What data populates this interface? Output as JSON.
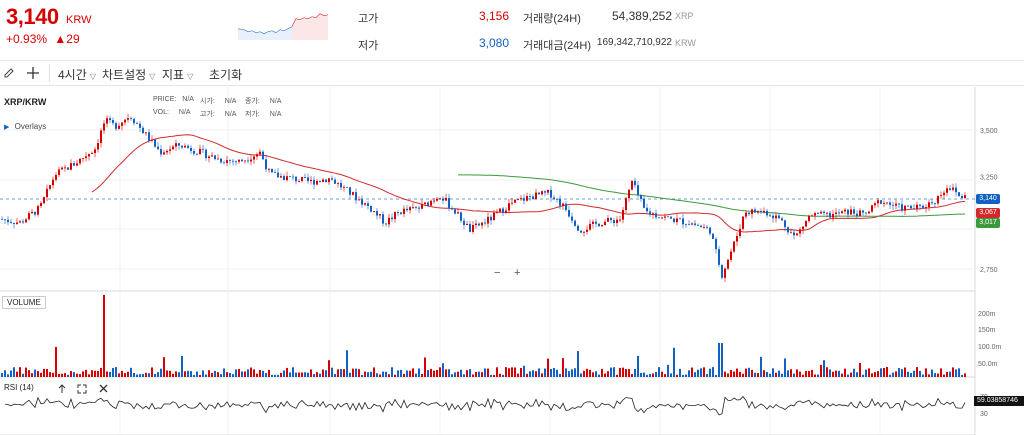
{
  "ticker": {
    "price": "3,140",
    "unit": "KRW",
    "change_pct": "+0.93%",
    "change_arrow": "▲",
    "change_abs": "29",
    "high_label": "고가",
    "high_value": "3,156",
    "low_label": "저가",
    "low_value": "3,080",
    "volume_label": "거래량(24H)",
    "volume_value": "54,389,252",
    "volume_unit": "XRP",
    "amount_label": "거래대금(24H)",
    "amount_value": "169,342,710,922",
    "amount_unit": "KRW"
  },
  "toolbar": {
    "interval": "4시간",
    "chart_settings": "차트설정",
    "indicators": "지표",
    "reset": "초기화"
  },
  "chart": {
    "symbol": "XRP/KRW",
    "overlays": "Overlays",
    "info": {
      "price_label": "PRICE:",
      "price_value": "N/A",
      "open_label": "시가:",
      "open_value": "N/A",
      "close_label": "종가:",
      "close_value": "N/A",
      "vol_label": "VOL:",
      "vol_value": "N/A",
      "high_label": "고가:",
      "high_value": "N/A",
      "low_label": "저가:",
      "low_value": "N/A"
    },
    "price_ticks": [
      "3,500",
      "3,250",
      "2,750"
    ],
    "price_tags": {
      "current": "3,140",
      "ma_red": "3,067",
      "ma_green": "3,017"
    },
    "volume_label": "VOLUME",
    "volume_ticks": [
      "200m",
      "150m",
      "100.0m",
      "50.0m"
    ],
    "rsi_label": "RSI (14)",
    "rsi_ticks": [
      "70",
      "30"
    ],
    "rsi_value": "59.03858746",
    "zoom_minus": "−",
    "zoom_plus": "+",
    "colors": {
      "up": "#d60000",
      "down": "#1261c4",
      "ma_red": "#d22a2a",
      "ma_green": "#3c9a3c"
    }
  }
}
